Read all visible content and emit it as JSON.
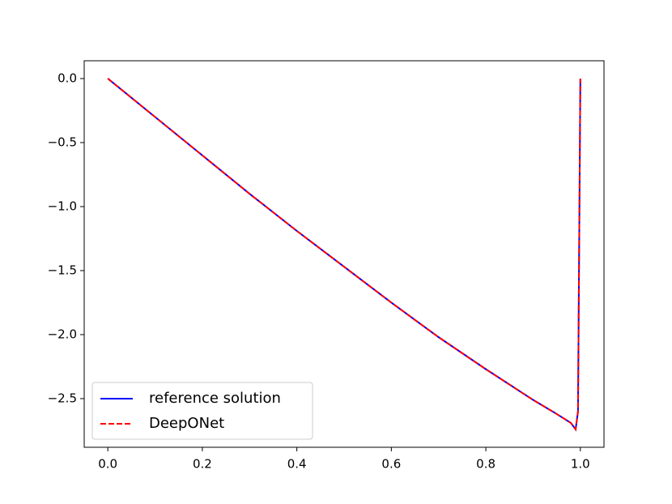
{
  "chart_data": {
    "type": "line",
    "x": [
      0,
      0.1,
      0.2,
      0.3,
      0.4,
      0.5,
      0.6,
      0.7,
      0.8,
      0.9,
      0.95,
      0.98,
      0.99,
      0.995,
      1.0
    ],
    "series": [
      {
        "name": "reference solution",
        "color": "#0000ff",
        "dash": false,
        "values": [
          0,
          -0.3,
          -0.6,
          -0.9,
          -1.19,
          -1.47,
          -1.75,
          -2.02,
          -2.27,
          -2.51,
          -2.62,
          -2.69,
          -2.74,
          -2.6,
          0
        ]
      },
      {
        "name": "DeepONet",
        "color": "#ff0000",
        "dash": true,
        "values": [
          0,
          -0.3,
          -0.6,
          -0.9,
          -1.19,
          -1.47,
          -1.75,
          -2.02,
          -2.27,
          -2.51,
          -2.62,
          -2.69,
          -2.74,
          -2.6,
          0
        ]
      }
    ],
    "xlim": [
      -0.05,
      1.05
    ],
    "ylim": [
      -2.88,
      0.139
    ],
    "xticks": [
      {
        "value": 0,
        "label": "0.0"
      },
      {
        "value": 0.2,
        "label": "0.2"
      },
      {
        "value": 0.4,
        "label": "0.4"
      },
      {
        "value": 0.6,
        "label": "0.6"
      },
      {
        "value": 0.8,
        "label": "0.8"
      },
      {
        "value": 1,
        "label": "1.0"
      }
    ],
    "yticks": [
      {
        "value": 0,
        "label": "0.0"
      },
      {
        "value": -0.5,
        "label": "−0.5"
      },
      {
        "value": -1,
        "label": "−1.0"
      },
      {
        "value": -1.5,
        "label": "−1.5"
      },
      {
        "value": -2,
        "label": "−2.0"
      },
      {
        "value": -2.5,
        "label": "−2.5"
      }
    ],
    "legend": "lower left"
  }
}
